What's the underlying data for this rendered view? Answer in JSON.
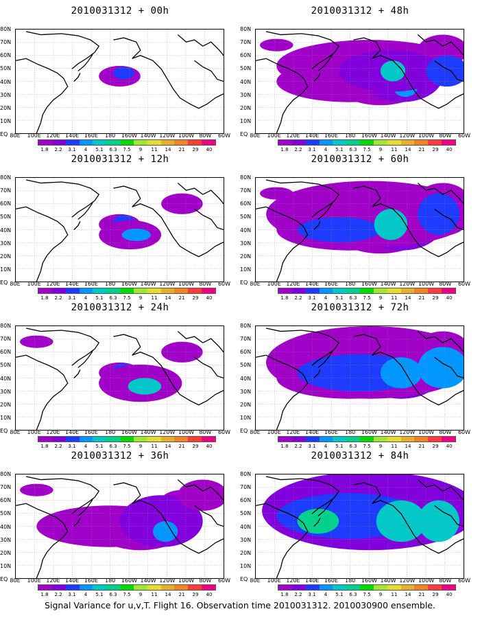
{
  "caption": "Signal Variance for u,v,T. Flight 16. Observation time 2010031312. 2010030900 ensemble.",
  "lat_labels": [
    "80N",
    "70N",
    "60N",
    "50N",
    "40N",
    "30N",
    "20N",
    "10N",
    "EQ"
  ],
  "lon_labels": [
    "80E",
    "100E",
    "120E",
    "140E",
    "160E",
    "180",
    "160W",
    "140W",
    "120W",
    "100W",
    "80W",
    "60W"
  ],
  "colorbar": {
    "levels": [
      "1.8",
      "2.2",
      "3.1",
      "4",
      "5.1",
      "6.3",
      "7.5",
      "9",
      "11",
      "14",
      "21",
      "29",
      "40"
    ],
    "colors": [
      "#a000c8",
      "#8200dc",
      "#1e3cff",
      "#0096ff",
      "#00c8c8",
      "#00d28c",
      "#00dc00",
      "#a0e632",
      "#e6dc32",
      "#e6af2d",
      "#f08228",
      "#fa3c3c",
      "#f00082"
    ]
  },
  "panels": [
    {
      "title": "2010031312 + 00h",
      "intensity": 0
    },
    {
      "title": "2010031312 + 48h",
      "intensity": 4
    },
    {
      "title": "2010031312 + 12h",
      "intensity": 1
    },
    {
      "title": "2010031312 + 60h",
      "intensity": 5
    },
    {
      "title": "2010031312 + 24h",
      "intensity": 2
    },
    {
      "title": "2010031312 + 72h",
      "intensity": 6
    },
    {
      "title": "2010031312 + 36h",
      "intensity": 3
    },
    {
      "title": "2010031312 + 84h",
      "intensity": 7
    }
  ]
}
